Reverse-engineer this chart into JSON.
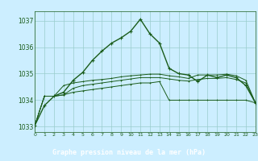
{
  "title": "Graphe pression niveau de la mer (hPa)",
  "background_color": "#cceeff",
  "plot_bg_color": "#cceeff",
  "label_bg_color": "#2d6a2d",
  "label_text_color": "#ffffff",
  "grid_color": "#99cccc",
  "line_color": "#1a5c1a",
  "xlim": [
    0,
    23
  ],
  "ylim": [
    1032.8,
    1037.35
  ],
  "yticks": [
    1033,
    1034,
    1035,
    1036,
    1037
  ],
  "xtick_labels": [
    "0",
    "1",
    "2",
    "3",
    "4",
    "5",
    "6",
    "7",
    "8",
    "9",
    "10",
    "11",
    "12",
    "13",
    "14",
    "15",
    "16",
    "17",
    "18",
    "19",
    "20",
    "21",
    "22",
    "23"
  ],
  "series": [
    [
      1033.05,
      1033.8,
      1034.15,
      1034.3,
      1034.75,
      1035.05,
      1035.5,
      1035.85,
      1036.15,
      1036.35,
      1036.6,
      1037.05,
      1036.5,
      1036.15,
      1035.2,
      1035.0,
      1034.95,
      1034.7,
      1034.95,
      1034.85,
      1034.95,
      1034.85,
      1034.55,
      1033.9
    ],
    [
      1033.05,
      1034.15,
      1034.15,
      1034.2,
      1034.3,
      1034.35,
      1034.4,
      1034.45,
      1034.5,
      1034.55,
      1034.6,
      1034.65,
      1034.65,
      1034.7,
      1034.0,
      1034.0,
      1034.0,
      1034.0,
      1034.0,
      1034.0,
      1034.0,
      1034.0,
      1034.0,
      1033.9
    ],
    [
      1033.05,
      1034.15,
      1034.15,
      1034.2,
      1034.45,
      1034.55,
      1034.6,
      1034.65,
      1034.7,
      1034.75,
      1034.8,
      1034.85,
      1034.85,
      1034.85,
      1034.8,
      1034.75,
      1034.72,
      1034.78,
      1034.82,
      1034.82,
      1034.85,
      1034.78,
      1034.65,
      1033.9
    ],
    [
      1033.05,
      1034.15,
      1034.15,
      1034.55,
      1034.65,
      1034.7,
      1034.75,
      1034.78,
      1034.82,
      1034.88,
      1034.92,
      1034.95,
      1034.98,
      1034.98,
      1034.92,
      1034.88,
      1034.82,
      1034.95,
      1034.95,
      1034.95,
      1034.98,
      1034.92,
      1034.75,
      1033.9
    ]
  ]
}
